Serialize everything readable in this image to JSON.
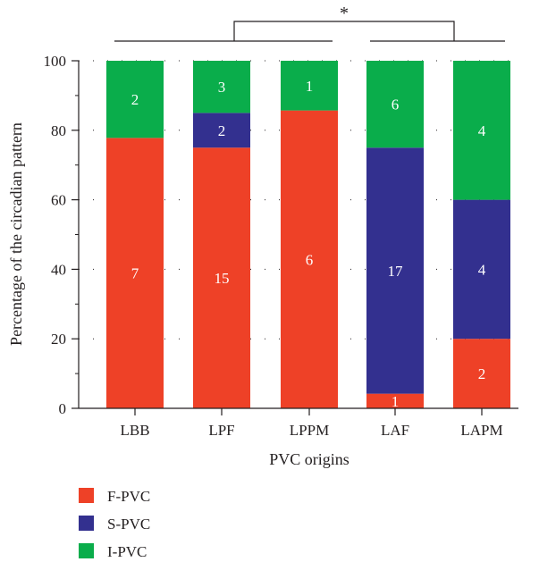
{
  "chart_data": {
    "type": "bar",
    "stacked": true,
    "xlabel": "PVC origins",
    "ylabel": "Percentage of the circadian pattern",
    "ylim": [
      0,
      100
    ],
    "yticks": [
      0,
      20,
      40,
      60,
      80,
      100
    ],
    "grid": "dotted-horizontal",
    "categories": [
      "LBB",
      "LPF",
      "LPPM",
      "LAF",
      "LAPM"
    ],
    "series": [
      {
        "name": "F-PVC",
        "color": "#ee4127",
        "values": [
          77.8,
          75.0,
          85.7,
          4.2,
          20.0
        ],
        "counts": [
          "7",
          "15",
          "6",
          "1",
          "2"
        ]
      },
      {
        "name": "S-PVC",
        "color": "#33308f",
        "values": [
          0,
          10.0,
          0,
          70.8,
          40.0
        ],
        "counts": [
          "",
          "2",
          "",
          "17",
          "4"
        ]
      },
      {
        "name": "I-PVC",
        "color": "#0aad4b",
        "values": [
          22.2,
          15.0,
          14.3,
          25.0,
          40.0
        ],
        "counts": [
          "2",
          "3",
          "1",
          "6",
          "4"
        ]
      }
    ],
    "significance": {
      "label": "*",
      "left_group": [
        "LBB",
        "LPF",
        "LPPM"
      ],
      "right_group": [
        "LAF",
        "LAPM"
      ]
    },
    "legend_position": "bottom-left"
  }
}
